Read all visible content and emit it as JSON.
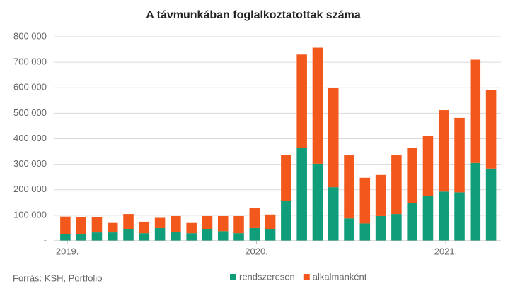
{
  "chart_data": {
    "type": "stacked-bar",
    "title": "A távmunkában foglalkoztatottak száma",
    "source": "Forrás: KSH, Portfolio",
    "categories": [
      "2019.",
      null,
      null,
      null,
      null,
      null,
      null,
      null,
      null,
      null,
      null,
      null,
      "2020.",
      null,
      null,
      null,
      null,
      null,
      null,
      null,
      null,
      null,
      null,
      null,
      "2021.",
      null,
      null,
      null
    ],
    "series": [
      {
        "name": "rendszeresen",
        "color": "#0f9d7a",
        "values": [
          25000,
          25000,
          33000,
          33000,
          45000,
          30000,
          50000,
          35000,
          30000,
          45000,
          38000,
          30000,
          50000,
          45000,
          155000,
          365000,
          302000,
          210000,
          88000,
          68000,
          97000,
          105000,
          148000,
          177000,
          193000,
          190000,
          305000,
          283000
        ]
      },
      {
        "name": "alkalmanként",
        "color": "#f2581b",
        "values": [
          70000,
          67000,
          59000,
          37000,
          60000,
          45000,
          40000,
          62000,
          40000,
          52000,
          59000,
          67000,
          80000,
          58000,
          182000,
          365000,
          455000,
          390000,
          247000,
          179000,
          161000,
          232000,
          217000,
          235000,
          319000,
          292000,
          405000,
          307000
        ]
      }
    ],
    "ylim": [
      0,
      800000
    ],
    "yticks": [
      {
        "value": 0,
        "label": "-"
      },
      {
        "value": 100000,
        "label": "100 000"
      },
      {
        "value": 200000,
        "label": "200 000"
      },
      {
        "value": 300000,
        "label": "300 000"
      },
      {
        "value": 400000,
        "label": "400 000"
      },
      {
        "value": 500000,
        "label": "500 000"
      },
      {
        "value": 600000,
        "label": "600 000"
      },
      {
        "value": 700000,
        "label": "700 000"
      },
      {
        "value": 800000,
        "label": "800 000"
      }
    ],
    "grid": true,
    "legend": "bottom"
  }
}
